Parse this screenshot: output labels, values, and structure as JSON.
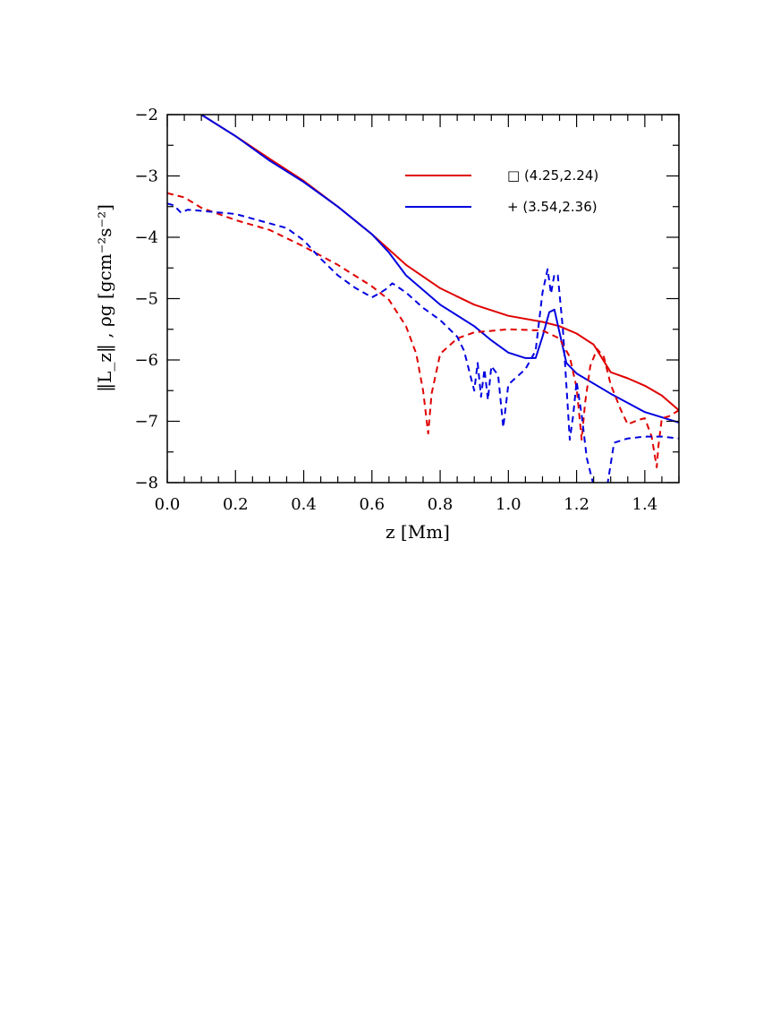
{
  "chart_data": {
    "type": "line",
    "title": "",
    "xlabel": "z [Mm]",
    "ylabel": "‖L_z‖ , ρg [gcm⁻²s⁻²]",
    "xlim": [
      0.0,
      1.5
    ],
    "ylim": [
      -8,
      -2
    ],
    "x_ticks": [
      "0.0",
      "0.2",
      "0.4",
      "0.6",
      "0.8",
      "1.0",
      "1.2",
      "1.4"
    ],
    "y_ticks": [
      "−8",
      "−7",
      "−6",
      "−5",
      "−4",
      "−3",
      "−2"
    ],
    "grid": false,
    "legend_position": "top-right",
    "series": [
      {
        "name": "□ (4.25,2.24)",
        "color": "#e00000",
        "style": "solid",
        "x": [
          0.1,
          0.2,
          0.3,
          0.4,
          0.5,
          0.6,
          0.7,
          0.8,
          0.9,
          1.0,
          1.1,
          1.15,
          1.2,
          1.25,
          1.3,
          1.32,
          1.35,
          1.4,
          1.45,
          1.5
        ],
        "y": [
          -2.0,
          -2.35,
          -2.72,
          -3.08,
          -3.5,
          -3.95,
          -4.45,
          -4.83,
          -5.1,
          -5.28,
          -5.38,
          -5.45,
          -5.57,
          -5.75,
          -6.2,
          -6.24,
          -6.3,
          -6.42,
          -6.58,
          -6.82
        ]
      },
      {
        "name": "+ (3.54,2.36)",
        "color": "#0000e0",
        "style": "solid",
        "x": [
          0.1,
          0.2,
          0.3,
          0.4,
          0.5,
          0.6,
          0.65,
          0.7,
          0.8,
          0.9,
          0.95,
          1.0,
          1.05,
          1.08,
          1.1,
          1.12,
          1.135,
          1.15,
          1.17,
          1.2,
          1.3,
          1.4,
          1.5
        ],
        "y": [
          -2.0,
          -2.35,
          -2.75,
          -3.1,
          -3.5,
          -3.95,
          -4.25,
          -4.62,
          -5.1,
          -5.45,
          -5.68,
          -5.88,
          -5.97,
          -5.97,
          -5.62,
          -5.22,
          -5.18,
          -5.55,
          -6.05,
          -6.22,
          -6.55,
          -6.85,
          -7.02
        ]
      },
      {
        "name": "",
        "color": "#e00000",
        "style": "dashed",
        "x": [
          0.0,
          0.05,
          0.1,
          0.2,
          0.3,
          0.4,
          0.5,
          0.6,
          0.65,
          0.7,
          0.73,
          0.75,
          0.765,
          0.775,
          0.8,
          0.85,
          0.9,
          1.0,
          1.1,
          1.15,
          1.18,
          1.2,
          1.215,
          1.225,
          1.24,
          1.26,
          1.28,
          1.3,
          1.33,
          1.35,
          1.38,
          1.4,
          1.42,
          1.435,
          1.44,
          1.45,
          1.47,
          1.5
        ],
        "y": [
          -3.28,
          -3.35,
          -3.52,
          -3.72,
          -3.88,
          -4.15,
          -4.45,
          -4.8,
          -5.02,
          -5.45,
          -5.9,
          -6.5,
          -7.2,
          -6.55,
          -5.9,
          -5.65,
          -5.55,
          -5.5,
          -5.52,
          -5.65,
          -5.95,
          -6.45,
          -7.3,
          -6.7,
          -6.1,
          -5.82,
          -5.95,
          -6.4,
          -6.82,
          -7.05,
          -6.98,
          -6.95,
          -7.25,
          -7.75,
          -7.4,
          -6.95,
          -6.92,
          -6.82
        ]
      },
      {
        "name": "",
        "color": "#0000e0",
        "style": "dashed",
        "x": [
          0.0,
          0.02,
          0.04,
          0.06,
          0.1,
          0.2,
          0.35,
          0.4,
          0.45,
          0.5,
          0.55,
          0.6,
          0.62,
          0.64,
          0.66,
          0.7,
          0.75,
          0.8,
          0.85,
          0.87,
          0.9,
          0.91,
          0.92,
          0.93,
          0.94,
          0.95,
          0.97,
          0.985,
          1.0,
          1.05,
          1.08,
          1.1,
          1.115,
          1.125,
          1.135,
          1.145,
          1.16,
          1.18,
          1.19,
          1.2,
          1.215,
          1.23,
          1.25,
          1.27,
          1.29,
          1.31,
          1.35,
          1.4,
          1.45,
          1.5
        ],
        "y": [
          -3.45,
          -3.48,
          -3.6,
          -3.55,
          -3.57,
          -3.62,
          -3.85,
          -4.05,
          -4.35,
          -4.62,
          -4.82,
          -4.98,
          -4.92,
          -4.85,
          -4.75,
          -4.9,
          -5.15,
          -5.35,
          -5.62,
          -5.85,
          -6.5,
          -6.05,
          -6.6,
          -6.15,
          -6.65,
          -6.1,
          -6.25,
          -7.1,
          -6.4,
          -6.15,
          -5.85,
          -4.9,
          -4.52,
          -4.92,
          -4.6,
          -4.62,
          -5.5,
          -7.3,
          -6.9,
          -6.35,
          -6.9,
          -7.6,
          -8.05,
          -8.05,
          -8.05,
          -7.35,
          -7.28,
          -7.25,
          -7.25,
          -7.28
        ]
      }
    ]
  }
}
